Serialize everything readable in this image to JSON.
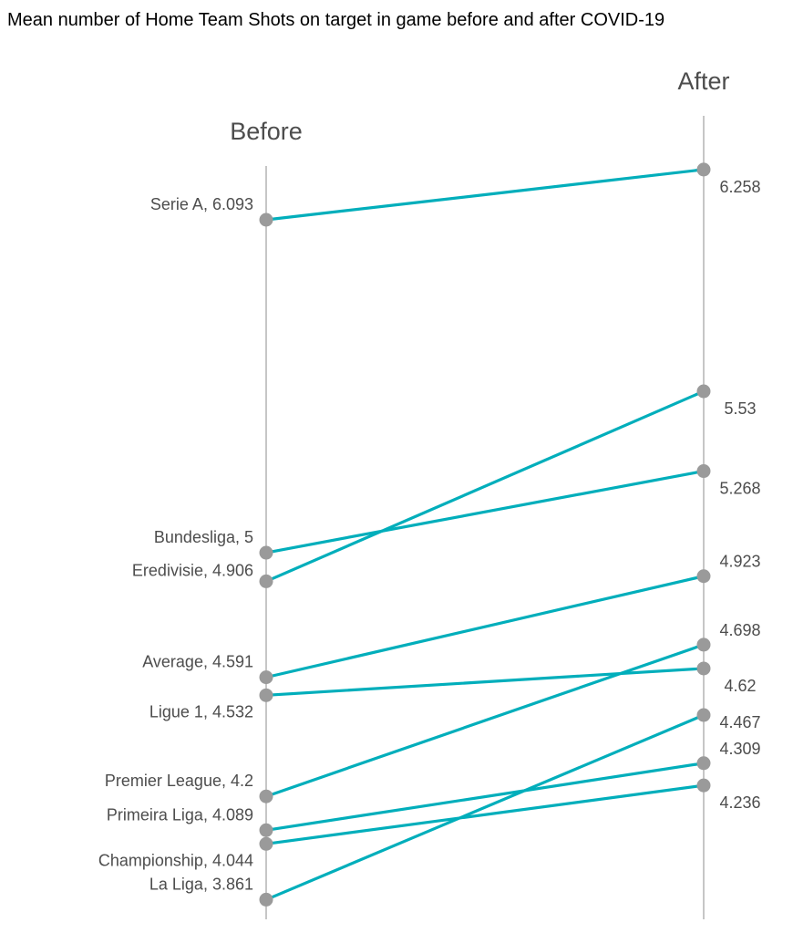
{
  "chart_data": {
    "type": "slope",
    "title": "Mean number of Home Team Shots on target in game before and after COVID-19",
    "before_label": "Before",
    "after_label": "After",
    "series": [
      {
        "name": "Serie A",
        "before": 6.093,
        "after": 6.258,
        "before_text": "Serie A, 6.093",
        "after_text": "6.258",
        "after_label_pos": "below"
      },
      {
        "name": "Bundesliga",
        "before": 5,
        "after": 5.268,
        "before_text": "Bundesliga, 5",
        "after_text": "5.268",
        "after_label_pos": "below"
      },
      {
        "name": "Eredivisie",
        "before": 4.906,
        "after": 5.53,
        "before_text": "Eredivisie, 4.906",
        "after_text": "5.53",
        "after_label_pos": "below"
      },
      {
        "name": "Average",
        "before": 4.591,
        "after": 4.923,
        "before_text": "Average, 4.591",
        "after_text": "4.923",
        "after_label_pos": "above"
      },
      {
        "name": "Ligue 1",
        "before": 4.532,
        "after": 4.62,
        "before_text": "Ligue 1, 4.532",
        "after_text": "4.62",
        "after_label_pos": "below"
      },
      {
        "name": "Premier League",
        "before": 4.2,
        "after": 4.698,
        "before_text": "Premier League, 4.2",
        "after_text": "4.698",
        "after_label_pos": "above"
      },
      {
        "name": "Primeira Liga",
        "before": 4.089,
        "after": 4.309,
        "before_text": "Primeira Liga, 4.089",
        "after_text": "4.309",
        "after_label_pos": "above"
      },
      {
        "name": "Championship",
        "before": 4.044,
        "after": 4.236,
        "before_text": "Championship, 4.044",
        "after_text": "4.236",
        "after_label_pos": "below"
      },
      {
        "name": "La Liga",
        "before": 3.861,
        "after": 4.467,
        "before_text": "La Liga, 3.861",
        "after_text": "4.467",
        "after_label_pos": "right"
      }
    ],
    "before_label_side": "left",
    "after_label_side": "right",
    "line_color": "#00aebb",
    "point_color": "#9a9a9a",
    "axis_color": "#b3b3b3"
  }
}
